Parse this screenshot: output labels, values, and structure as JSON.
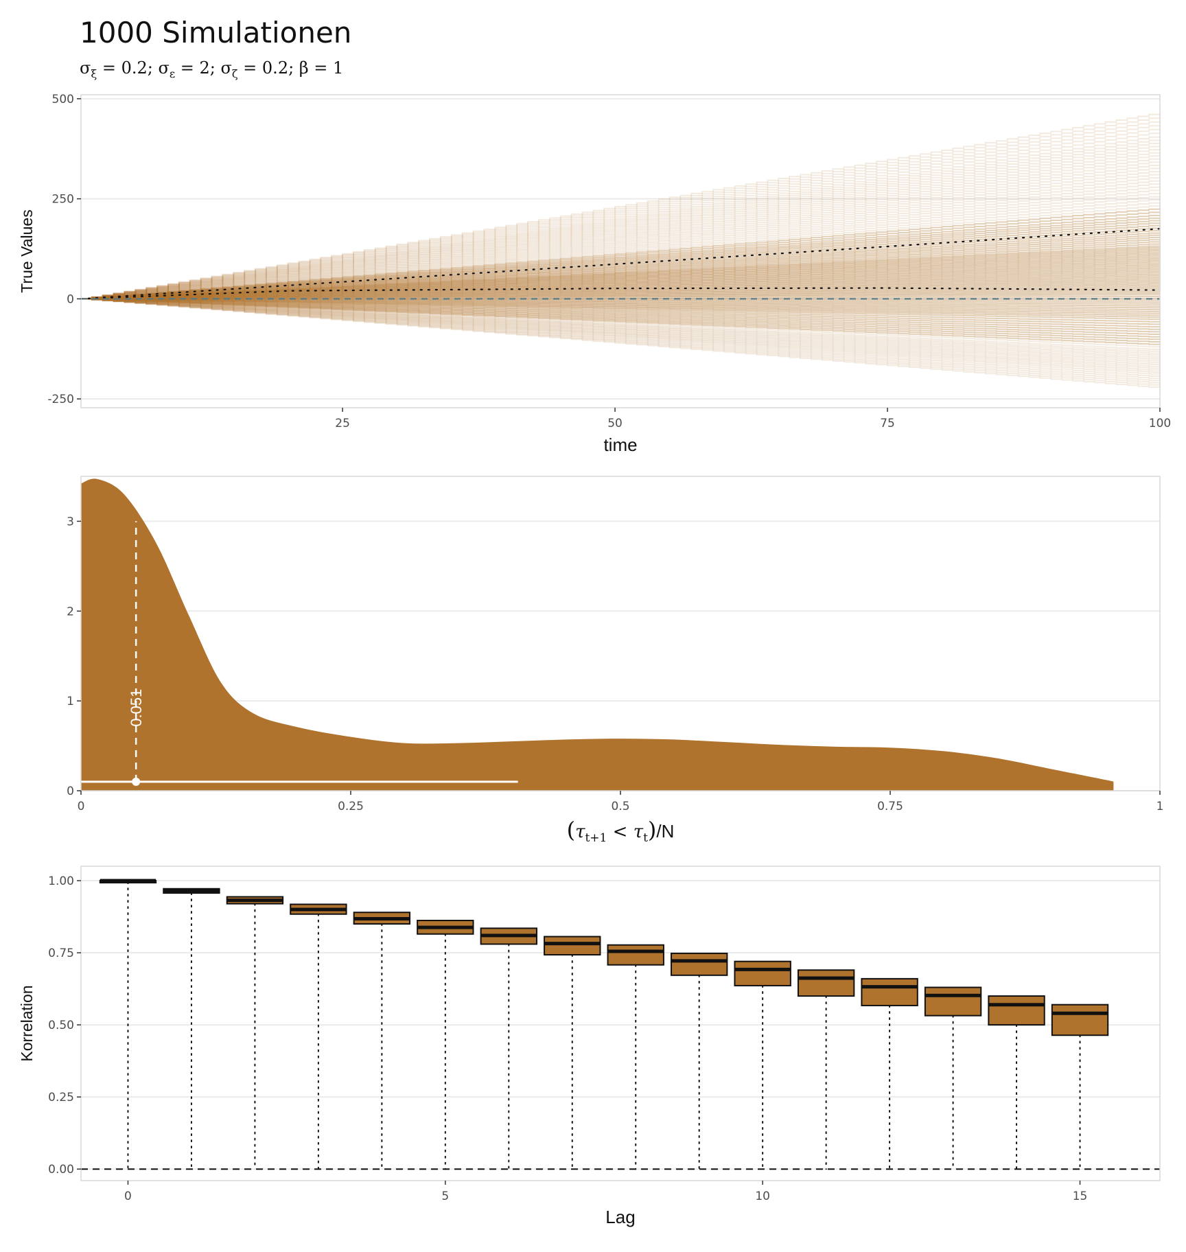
{
  "title": "1000 Simulationen",
  "subtitle": "σξ = 0.2;  σε = 2;  σζ = 0.2;  β = 1",
  "colors": {
    "fill": "#B0732E",
    "reference": "#4F7A8A",
    "grid": "#EBEBEB",
    "panel_border": "#D9D9D9"
  },
  "chart_data": [
    {
      "type": "line",
      "xlabel": "time",
      "ylabel": "True Values",
      "xlim": [
        1,
        100
      ],
      "ylim": [
        -250,
        500
      ],
      "xticks": [
        25,
        50,
        75,
        100
      ],
      "yticks": [
        -250,
        0,
        250,
        500
      ],
      "n_series": 1000,
      "series_slope_quantiles": [
        -2.25,
        -1.9,
        -1.6,
        -1.3,
        -0.9,
        -0.5,
        -0.2,
        0.1,
        0.35,
        0.6,
        0.85,
        1.1,
        1.35,
        1.7,
        2.1,
        2.6,
        3.1,
        3.6,
        4.1,
        4.7
      ],
      "dotted_lines": [
        {
          "x": [
            1,
            100
          ],
          "y": [
            0,
            175
          ]
        },
        {
          "x": [
            1,
            20,
            50,
            75,
            100
          ],
          "y": [
            0,
            20,
            26,
            27,
            22
          ]
        }
      ],
      "reference_line": {
        "y": 0,
        "style": "dashed"
      },
      "grid": true
    },
    {
      "type": "area",
      "xlabel": "(τt+1 < τt)/N",
      "ylabel": "",
      "xlim": [
        0,
        1
      ],
      "ylim": [
        0,
        3.5
      ],
      "xticks": [
        0,
        0.25,
        0.5,
        0.75,
        1
      ],
      "xtick_labels": [
        "0",
        "0.25",
        "0.5",
        "0.75",
        "1"
      ],
      "yticks": [
        0,
        1,
        2,
        3
      ],
      "x": [
        0,
        0.015,
        0.04,
        0.07,
        0.1,
        0.13,
        0.16,
        0.2,
        0.25,
        0.3,
        0.35,
        0.4,
        0.45,
        0.5,
        0.55,
        0.6,
        0.65,
        0.7,
        0.75,
        0.8,
        0.85,
        0.9,
        0.95,
        0.957
      ],
      "density": [
        3.42,
        3.47,
        3.3,
        2.75,
        1.95,
        1.2,
        0.86,
        0.71,
        0.6,
        0.53,
        0.53,
        0.55,
        0.57,
        0.58,
        0.57,
        0.54,
        0.51,
        0.49,
        0.48,
        0.44,
        0.36,
        0.24,
        0.12,
        0.1
      ],
      "median": 0.051,
      "median_label": "0.051",
      "median_density": 3.0,
      "interval": [
        0,
        0.405
      ],
      "interval_y": 0.1,
      "grid": true
    },
    {
      "type": "box",
      "xlabel": "Lag",
      "ylabel": "Korrelation",
      "xlim": [
        -1,
        16
      ],
      "ylim": [
        -0.04,
        1.05
      ],
      "xticks": [
        0,
        5,
        10,
        15
      ],
      "yticks": [
        0,
        0.25,
        0.5,
        0.75,
        1
      ],
      "ytick_labels": [
        "0.00",
        "0.25",
        "0.50",
        "0.75",
        "1.00"
      ],
      "categories": [
        0,
        1,
        2,
        3,
        4,
        5,
        6,
        7,
        8,
        9,
        10,
        11,
        12,
        13,
        14,
        15
      ],
      "q1": [
        0.995,
        0.957,
        0.92,
        0.884,
        0.85,
        0.815,
        0.78,
        0.743,
        0.708,
        0.672,
        0.636,
        0.6,
        0.567,
        0.532,
        0.5,
        0.464
      ],
      "median": [
        1.0,
        0.965,
        0.932,
        0.9,
        0.868,
        0.838,
        0.81,
        0.782,
        0.755,
        0.722,
        0.692,
        0.662,
        0.632,
        0.602,
        0.57,
        0.54
      ],
      "q3": [
        1.0,
        0.972,
        0.944,
        0.918,
        0.89,
        0.862,
        0.835,
        0.806,
        0.777,
        0.748,
        0.72,
        0.69,
        0.66,
        0.63,
        0.6,
        0.57
      ],
      "whisker_low": [
        0.0,
        0.0,
        0.0,
        0.0,
        0.0,
        0.0,
        0.0,
        0.0,
        0.0,
        0.0,
        0.0,
        0.0,
        0.0,
        0.0,
        0.0,
        0.0
      ],
      "reference_line": {
        "y": 0,
        "style": "dashed"
      },
      "grid": true
    }
  ]
}
